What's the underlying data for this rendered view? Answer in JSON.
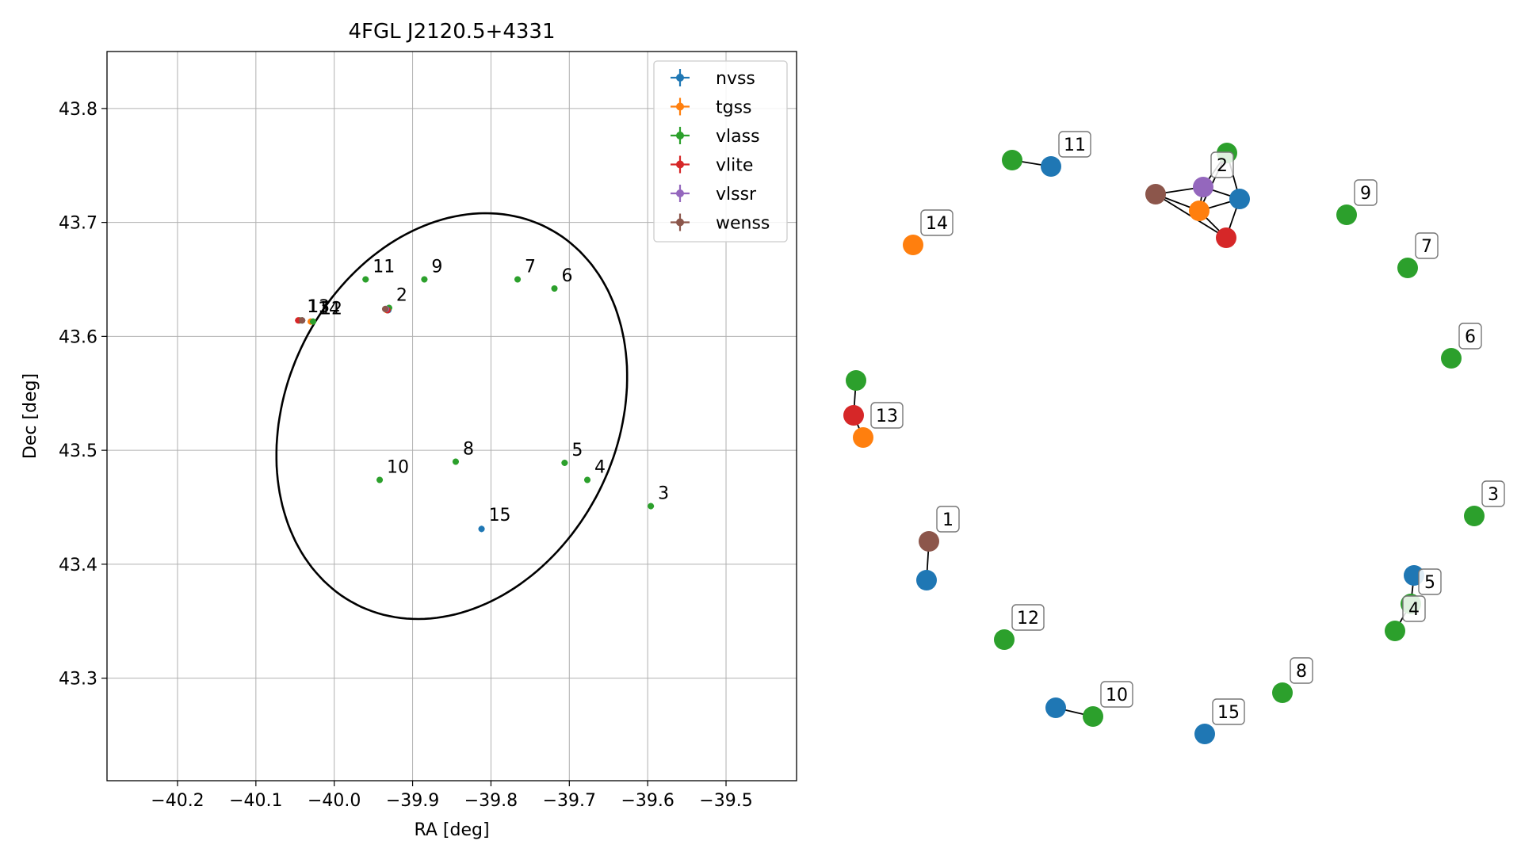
{
  "colors": {
    "nvss": "#1f77b4",
    "tgss": "#ff7f0e",
    "vlass": "#2ca02c",
    "vlite": "#d62728",
    "vlssr": "#9467bd",
    "wenss": "#8c564b",
    "grid": "#b0b0b0",
    "ellipse": "#000000",
    "edge": "#000000"
  },
  "chart_data": [
    {
      "type": "scatter",
      "title": "4FGL J2120.5+4331",
      "xlabel": "RA [deg]",
      "ylabel": "Dec [deg]",
      "xlim": [
        -40.29,
        -39.41
      ],
      "ylim": [
        43.21,
        43.85
      ],
      "xticks": [
        -40.2,
        -40.1,
        -40.0,
        -39.9,
        -39.8,
        -39.7,
        -39.6,
        -39.5
      ],
      "xtick_labels": [
        "−40.2",
        "−40.1",
        "−40.0",
        "−39.9",
        "−39.8",
        "−39.7",
        "−39.6",
        "−39.5"
      ],
      "yticks": [
        43.3,
        43.4,
        43.5,
        43.6,
        43.7,
        43.8
      ],
      "ytick_labels": [
        "43.3",
        "43.4",
        "43.5",
        "43.6",
        "43.7",
        "43.8"
      ],
      "grid": true,
      "legend_position": "top-right",
      "series": [
        {
          "name": "nvss",
          "points": [
            [
              -39.812,
              43.431
            ],
            [
              -40.041,
              43.614
            ],
            [
              -39.931,
              43.623
            ]
          ]
        },
        {
          "name": "tgss",
          "points": [
            [
              -40.03,
              43.613
            ],
            [
              -39.933,
              43.623
            ]
          ]
        },
        {
          "name": "vlass",
          "points": [
            [
              -39.596,
              43.451
            ],
            [
              -39.677,
              43.474
            ],
            [
              -39.706,
              43.489
            ],
            [
              -39.719,
              43.642
            ],
            [
              -39.766,
              43.65
            ],
            [
              -39.845,
              43.49
            ],
            [
              -39.885,
              43.65
            ],
            [
              -39.942,
              43.474
            ],
            [
              -39.96,
              43.65
            ],
            [
              -40.027,
              43.613
            ],
            [
              -40.044,
              43.614
            ],
            [
              -39.93,
              43.625
            ]
          ]
        },
        {
          "name": "vlite",
          "points": [
            [
              -40.046,
              43.614
            ],
            [
              -39.932,
              43.623
            ]
          ]
        },
        {
          "name": "vlssr",
          "points": [
            [
              -39.934,
              43.624
            ]
          ]
        },
        {
          "name": "wenss",
          "points": [
            [
              -40.041,
              43.614
            ],
            [
              -39.935,
              43.624
            ]
          ]
        }
      ],
      "annotations": [
        {
          "text": "2",
          "x": -39.93,
          "y": 43.625
        },
        {
          "text": "3",
          "x": -39.596,
          "y": 43.451
        },
        {
          "text": "4",
          "x": -39.677,
          "y": 43.474
        },
        {
          "text": "5",
          "x": -39.706,
          "y": 43.489
        },
        {
          "text": "6",
          "x": -39.719,
          "y": 43.642
        },
        {
          "text": "7",
          "x": -39.766,
          "y": 43.65
        },
        {
          "text": "8",
          "x": -39.845,
          "y": 43.49
        },
        {
          "text": "9",
          "x": -39.885,
          "y": 43.65
        },
        {
          "text": "10",
          "x": -39.942,
          "y": 43.474
        },
        {
          "text": "11",
          "x": -39.96,
          "y": 43.65
        },
        {
          "text": "1",
          "x": -40.044,
          "y": 43.615
        },
        {
          "text": "13",
          "x": -40.043,
          "y": 43.615
        },
        {
          "text": "14",
          "x": -40.03,
          "y": 43.613
        },
        {
          "text": "12",
          "x": -40.027,
          "y": 43.613
        },
        {
          "text": "15",
          "x": -39.812,
          "y": 43.432
        }
      ],
      "ellipse": {
        "center": [
          -39.85,
          43.53
        ],
        "semi_major_ra": 0.23,
        "semi_minor_dec": 0.17,
        "angle_deg": 20
      }
    },
    {
      "type": "network",
      "nodes": [
        {
          "id": "n11a",
          "catalog": "vlass"
        },
        {
          "id": "n11b",
          "catalog": "nvss",
          "label": "11"
        },
        {
          "id": "n2a",
          "catalog": "vlass"
        },
        {
          "id": "n2b",
          "catalog": "vlssr",
          "label": "2"
        },
        {
          "id": "n2c",
          "catalog": "nvss"
        },
        {
          "id": "n2d",
          "catalog": "wenss"
        },
        {
          "id": "n2e",
          "catalog": "tgss"
        },
        {
          "id": "n2f",
          "catalog": "vlite"
        },
        {
          "id": "n9",
          "catalog": "vlass",
          "label": "9"
        },
        {
          "id": "n14",
          "catalog": "tgss",
          "label": "14"
        },
        {
          "id": "n7",
          "catalog": "vlass",
          "label": "7"
        },
        {
          "id": "n6",
          "catalog": "vlass",
          "label": "6"
        },
        {
          "id": "n13a",
          "catalog": "vlass"
        },
        {
          "id": "n13b",
          "catalog": "vlite"
        },
        {
          "id": "n13c",
          "catalog": "tgss",
          "label": "13"
        },
        {
          "id": "n3",
          "catalog": "vlass",
          "label": "3"
        },
        {
          "id": "n1a",
          "catalog": "wenss",
          "label": "1"
        },
        {
          "id": "n1b",
          "catalog": "nvss"
        },
        {
          "id": "n5a",
          "catalog": "nvss"
        },
        {
          "id": "n5b",
          "catalog": "vlass",
          "label": "5"
        },
        {
          "id": "n5c",
          "catalog": "vlass",
          "label": "4"
        },
        {
          "id": "n12",
          "catalog": "vlass",
          "label": "12"
        },
        {
          "id": "n8",
          "catalog": "vlass",
          "label": "8"
        },
        {
          "id": "n10a",
          "catalog": "nvss"
        },
        {
          "id": "n10b",
          "catalog": "vlass",
          "label": "10"
        },
        {
          "id": "n15",
          "catalog": "nvss",
          "label": "15"
        }
      ],
      "edges": [
        [
          "n11a",
          "n11b"
        ],
        [
          "n2d",
          "n2b"
        ],
        [
          "n2d",
          "n2e"
        ],
        [
          "n2d",
          "n2f"
        ],
        [
          "n2b",
          "n2a"
        ],
        [
          "n2b",
          "n2c"
        ],
        [
          "n2b",
          "n2e"
        ],
        [
          "n2e",
          "n2c"
        ],
        [
          "n2e",
          "n2f"
        ],
        [
          "n2f",
          "n2c"
        ],
        [
          "n2a",
          "n2c"
        ],
        [
          "n2a",
          "n2e"
        ],
        [
          "n13a",
          "n13b"
        ],
        [
          "n13b",
          "n13c"
        ],
        [
          "n1a",
          "n1b"
        ],
        [
          "n5a",
          "n5b"
        ],
        [
          "n5b",
          "n5c"
        ],
        [
          "n10a",
          "n10b"
        ]
      ]
    }
  ]
}
